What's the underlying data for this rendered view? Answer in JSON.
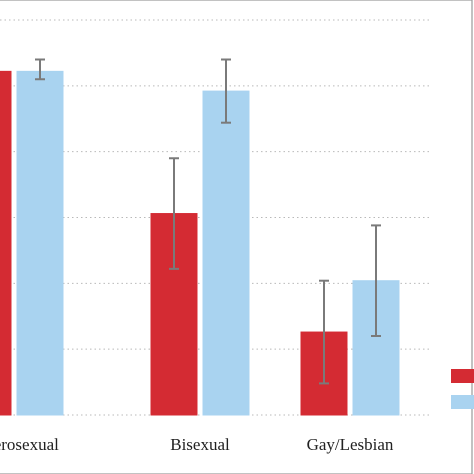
{
  "chart_data": {
    "type": "bar",
    "categories": [
      "Heterosexual",
      "Bisexual",
      "Gay/Lesbian"
    ],
    "series": [
      {
        "color": "#d42b33",
        "values": [
          0.87,
          0.51,
          0.21
        ],
        "error_low": [
          0.85,
          0.37,
          0.08
        ],
        "error_high": [
          0.89,
          0.65,
          0.34
        ]
      },
      {
        "color": "#a9d3f0",
        "values": [
          0.87,
          0.82,
          0.34
        ],
        "error_low": [
          0.85,
          0.74,
          0.2
        ],
        "error_high": [
          0.9,
          0.9,
          0.48
        ]
      }
    ],
    "ylim": [
      0,
      1
    ],
    "grid": true,
    "legend_position": "right"
  }
}
